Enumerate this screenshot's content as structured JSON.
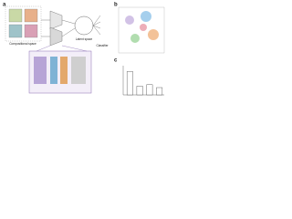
{
  "panels": {
    "a": {
      "label": "a",
      "left_caption": "Compositional space",
      "middle_caption": "Latent space",
      "right_caption": "Classifier"
    },
    "b": {
      "label": "b"
    },
    "c": {
      "label": "c",
      "chart_data": {
        "type": "bar",
        "values": [
          0.8,
          0.3,
          0.35,
          0.25
        ],
        "ylim": [
          0,
          1
        ],
        "color": "#ffffff"
      }
    }
  }
}
